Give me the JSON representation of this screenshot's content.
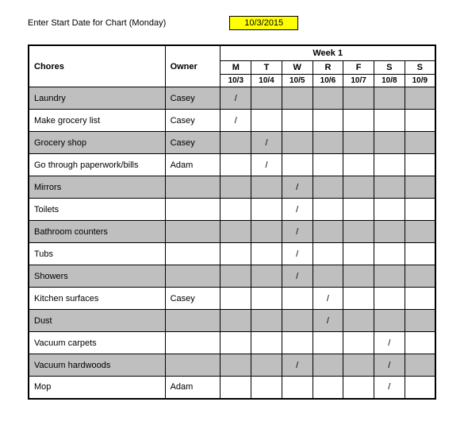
{
  "header": {
    "label": "Enter Start Date for Chart (Monday)",
    "date": "10/3/2015"
  },
  "table": {
    "chores_label": "Chores",
    "owner_label": "Owner",
    "week_label": "Week 1",
    "days": [
      "M",
      "T",
      "W",
      "R",
      "F",
      "S",
      "S"
    ],
    "dates": [
      "10/3",
      "10/4",
      "10/5",
      "10/6",
      "10/7",
      "10/8",
      "10/9"
    ],
    "rows": [
      {
        "chore": "Laundry",
        "owner": "Casey",
        "marks": [
          "/",
          "",
          "",
          "",
          "",
          "",
          ""
        ],
        "shaded": true
      },
      {
        "chore": "Make grocery list",
        "owner": "Casey",
        "marks": [
          "/",
          "",
          "",
          "",
          "",
          "",
          ""
        ],
        "shaded": false
      },
      {
        "chore": "Grocery shop",
        "owner": "Casey",
        "marks": [
          "",
          "/",
          "",
          "",
          "",
          "",
          ""
        ],
        "shaded": true
      },
      {
        "chore": "Go through paperwork/bills",
        "owner": "Adam",
        "marks": [
          "",
          "/",
          "",
          "",
          "",
          "",
          ""
        ],
        "shaded": false
      },
      {
        "chore": "Mirrors",
        "owner": "",
        "marks": [
          "",
          "",
          "/",
          "",
          "",
          "",
          ""
        ],
        "shaded": true
      },
      {
        "chore": "Toilets",
        "owner": "",
        "marks": [
          "",
          "",
          "/",
          "",
          "",
          "",
          ""
        ],
        "shaded": false
      },
      {
        "chore": "Bathroom counters",
        "owner": "",
        "marks": [
          "",
          "",
          "/",
          "",
          "",
          "",
          ""
        ],
        "shaded": true
      },
      {
        "chore": "Tubs",
        "owner": "",
        "marks": [
          "",
          "",
          "/",
          "",
          "",
          "",
          ""
        ],
        "shaded": false
      },
      {
        "chore": "Showers",
        "owner": "",
        "marks": [
          "",
          "",
          "/",
          "",
          "",
          "",
          ""
        ],
        "shaded": true
      },
      {
        "chore": "Kitchen surfaces",
        "owner": "Casey",
        "marks": [
          "",
          "",
          "",
          "/",
          "",
          "",
          ""
        ],
        "shaded": false
      },
      {
        "chore": "Dust",
        "owner": "",
        "marks": [
          "",
          "",
          "",
          "/",
          "",
          "",
          ""
        ],
        "shaded": true
      },
      {
        "chore": "Vacuum carpets",
        "owner": "",
        "marks": [
          "",
          "",
          "",
          "",
          "",
          "/",
          ""
        ],
        "shaded": false
      },
      {
        "chore": "Vacuum hardwoods",
        "owner": "",
        "marks": [
          "",
          "",
          "/",
          "",
          "",
          "/",
          ""
        ],
        "shaded": true
      },
      {
        "chore": "Mop",
        "owner": "Adam",
        "marks": [
          "",
          "",
          "",
          "",
          "",
          "/",
          ""
        ],
        "shaded": false
      }
    ]
  }
}
